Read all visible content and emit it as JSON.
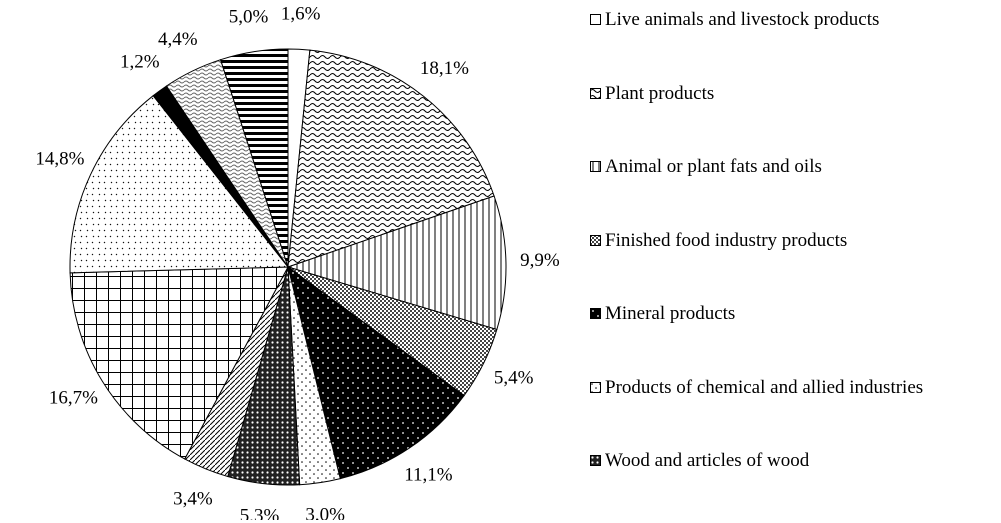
{
  "chart_data": {
    "type": "pie",
    "categories": [
      "Live animals and livestock products",
      "Plant products",
      "Animal or plant fats and oils",
      "Finished food industry products",
      "Mineral products",
      "Products of chemical and allied industries",
      "Wood and articles of wood",
      null,
      null,
      null,
      null,
      null,
      null
    ],
    "values": [
      1.6,
      18.1,
      9.9,
      5.4,
      11.1,
      3.0,
      5.3,
      3.4,
      16.7,
      14.8,
      1.2,
      4.4,
      5.0
    ],
    "value_labels": [
      "1,6%",
      "18,1%",
      "9,9%",
      "5,4%",
      "11,1%",
      "3,0%",
      "5,3%",
      "3,4%",
      "16,7%",
      "14,8%",
      "1,2%",
      "4,4%",
      "5,0%"
    ],
    "patterns": [
      "white",
      "wave",
      "vlines",
      "checker",
      "black-dots",
      "dots",
      "dark-check",
      "diag",
      "grid",
      "diamond-dots",
      "black",
      "wave2",
      "hlines"
    ],
    "legend": "right"
  }
}
